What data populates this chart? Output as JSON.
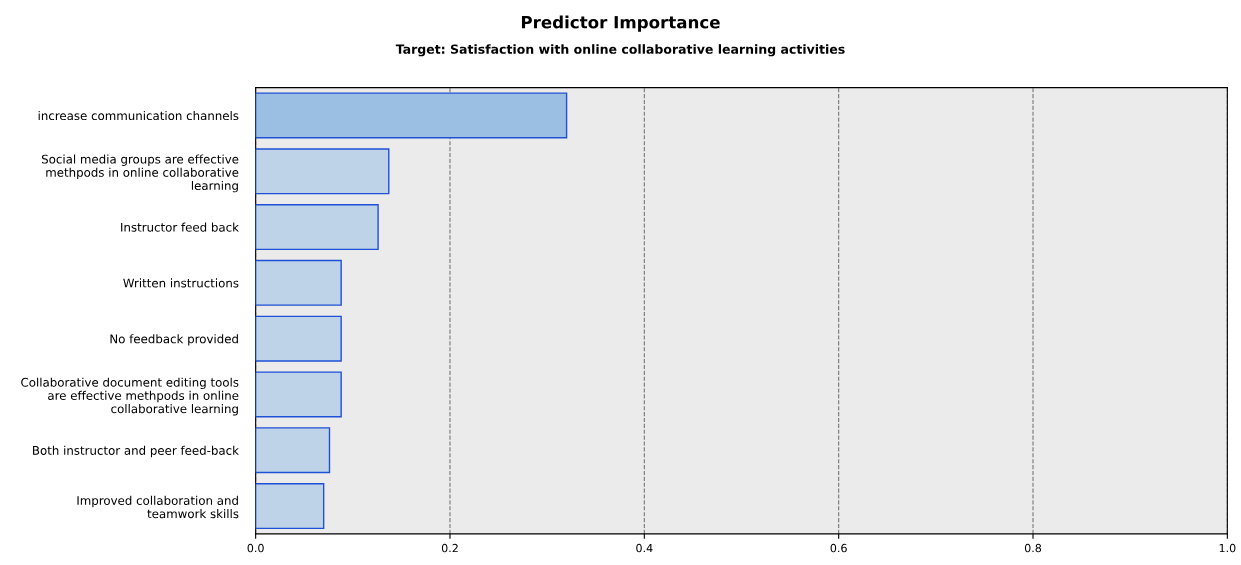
{
  "chart_data": {
    "type": "bar",
    "orientation": "horizontal",
    "title": "Predictor Importance",
    "subtitle": "Target: Satisfaction with online collaborative learning activities",
    "categories": [
      "increase communication channels",
      "Social media groups are effective\nmethpods in online collaborative\nlearning",
      "Instructor feed back",
      "Written instructions",
      "No feedback provided",
      "Collaborative document editing tools\nare effective methpods in online\ncollaborative learning",
      "Both instructor and peer feed-back",
      "Improved collaboration and\nteamwork skills"
    ],
    "values": [
      0.32,
      0.137,
      0.126,
      0.088,
      0.088,
      0.088,
      0.076,
      0.07
    ],
    "colors": [
      "#9bbee3",
      "#bed3e8",
      "#bed3e8",
      "#bed3e8",
      "#bed3e8",
      "#bed3e8",
      "#bed3e8",
      "#bed3e8"
    ],
    "xlim": [
      0,
      1
    ],
    "xticks": [
      {
        "value": 0,
        "label": "0.0"
      },
      {
        "value": 0.2,
        "label": "0.2"
      },
      {
        "value": 0.4,
        "label": "0.4"
      },
      {
        "value": 0.6,
        "label": "0.6"
      },
      {
        "value": 0.8,
        "label": "0.8"
      },
      {
        "value": 1,
        "label": "1.0"
      }
    ],
    "grid": "x",
    "line_style": "dashed"
  }
}
